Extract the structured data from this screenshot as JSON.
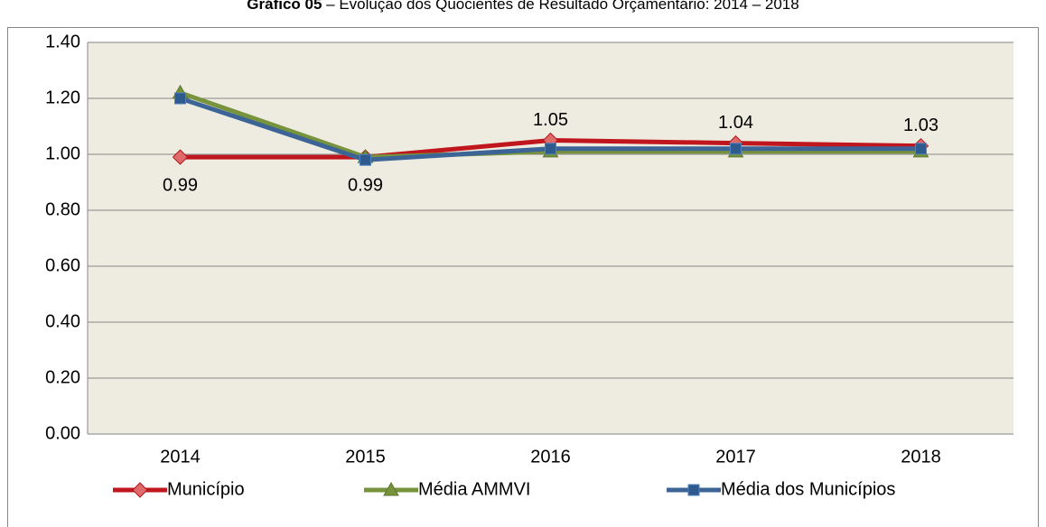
{
  "chart_data": {
    "type": "line",
    "title_bold": "Gráfico 05",
    "title": " – Evolução dos Quocientes de Resultado Orçamentário: 2014 – 2018",
    "categories": [
      "2014",
      "2015",
      "2016",
      "2017",
      "2018"
    ],
    "series": [
      {
        "name": "Município",
        "color": "#c0171e",
        "marker": "diamond",
        "values": [
          0.99,
          0.99,
          1.05,
          1.04,
          1.03
        ],
        "data_labels": true
      },
      {
        "name": "Média AMMVI",
        "color": "#77933c",
        "marker": "triangle",
        "values": [
          1.22,
          0.99,
          1.01,
          1.01,
          1.01
        ]
      },
      {
        "name": "Média dos Municípios",
        "color": "#3c6496",
        "marker": "square",
        "values": [
          1.2,
          0.98,
          1.02,
          1.02,
          1.02
        ]
      }
    ],
    "ylim": [
      0,
      1.4
    ],
    "yticks": [
      {
        "value": 0,
        "label": "0.00"
      },
      {
        "value": 0.2,
        "label": "0.20"
      },
      {
        "value": 0.4,
        "label": "0.40"
      },
      {
        "value": 0.6,
        "label": "0.60"
      },
      {
        "value": 0.8,
        "label": "0.80"
      },
      {
        "value": 1,
        "label": "1.00"
      },
      {
        "value": 1.2,
        "label": "1.20"
      },
      {
        "value": 1.4,
        "label": "1.40"
      }
    ],
    "grid": true,
    "legend": "bottom"
  }
}
